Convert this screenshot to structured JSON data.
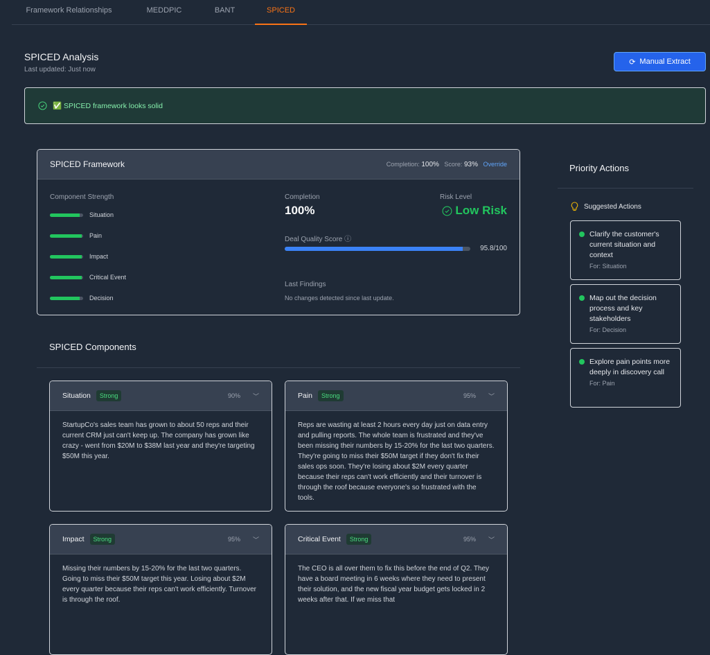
{
  "tabs": [
    {
      "label": "Framework Relationships"
    },
    {
      "label": "MEDDPIC"
    },
    {
      "label": "BANT"
    },
    {
      "label": "SPICED",
      "active": true
    }
  ],
  "header": {
    "title": "SPICED Analysis",
    "subtitle": "Last updated: Just now",
    "button": "Manual Extract"
  },
  "banner": {
    "emoji": "✅",
    "text": "SPICED framework looks solid"
  },
  "framework": {
    "title": "SPICED Framework",
    "completion_label": "Completion:",
    "completion": "100%",
    "score_label": "Score:",
    "score": "93%",
    "override": "Override",
    "strength_label": "Component Strength",
    "strengths": [
      {
        "name": "Situation",
        "value": 90
      },
      {
        "name": "Pain",
        "value": 95
      },
      {
        "name": "Impact",
        "value": 95
      },
      {
        "name": "Critical Event",
        "value": 95
      },
      {
        "name": "Decision",
        "value": 90
      }
    ],
    "completion_title": "Completion",
    "completion_value": "100%",
    "risk_title": "Risk Level",
    "risk_value": "Low Risk",
    "dqs_label": "Deal Quality Score",
    "dqs_value": 95.8,
    "dqs_text": "95.8/100",
    "findings_title": "Last Findings",
    "findings_text": "No changes detected since last update."
  },
  "priority": {
    "title": "Priority Actions",
    "suggested": "Suggested Actions",
    "actions": [
      {
        "text": "Clarify the customer's current situation and context",
        "for": "For: Situation"
      },
      {
        "text": "Map out the decision process and key stakeholders",
        "for": "For: Decision"
      },
      {
        "text": "Explore pain points more deeply in discovery call",
        "for": "For: Pain"
      }
    ]
  },
  "components": {
    "title": "SPICED Components",
    "items": [
      {
        "name": "Situation",
        "badge": "Strong",
        "pct": "90%",
        "text": "StartupCo's sales team has grown to about 50 reps and their current CRM just can't keep up. The company has grown like crazy - went from $20M to $38M last year and they're targeting $50M this year."
      },
      {
        "name": "Pain",
        "badge": "Strong",
        "pct": "95%",
        "text": "Reps are wasting at least 2 hours every day just on data entry and pulling reports. The whole team is frustrated and they've been missing their numbers by 15-20% for the last two quarters. They're going to miss their $50M target if they don't fix their sales ops soon. They're losing about $2M every quarter because their reps can't work efficiently and their turnover is through the roof because everyone's so frustrated with the tools."
      },
      {
        "name": "Impact",
        "badge": "Strong",
        "pct": "95%",
        "text": "Missing their numbers by 15-20% for the last two quarters. Going to miss their $50M target this year. Losing about $2M every quarter because their reps can't work efficiently. Turnover is through the roof."
      },
      {
        "name": "Critical Event",
        "badge": "Strong",
        "pct": "95%",
        "text": "The CEO is all over them to fix this before the end of Q2. They have a board meeting in 6 weeks where they need to present their solution, and the new fiscal year budget gets locked in 2 weeks after that. If we miss that"
      }
    ]
  },
  "colors": {
    "accent": "#f97316",
    "primary": "#2563eb",
    "success": "#22c55e"
  }
}
